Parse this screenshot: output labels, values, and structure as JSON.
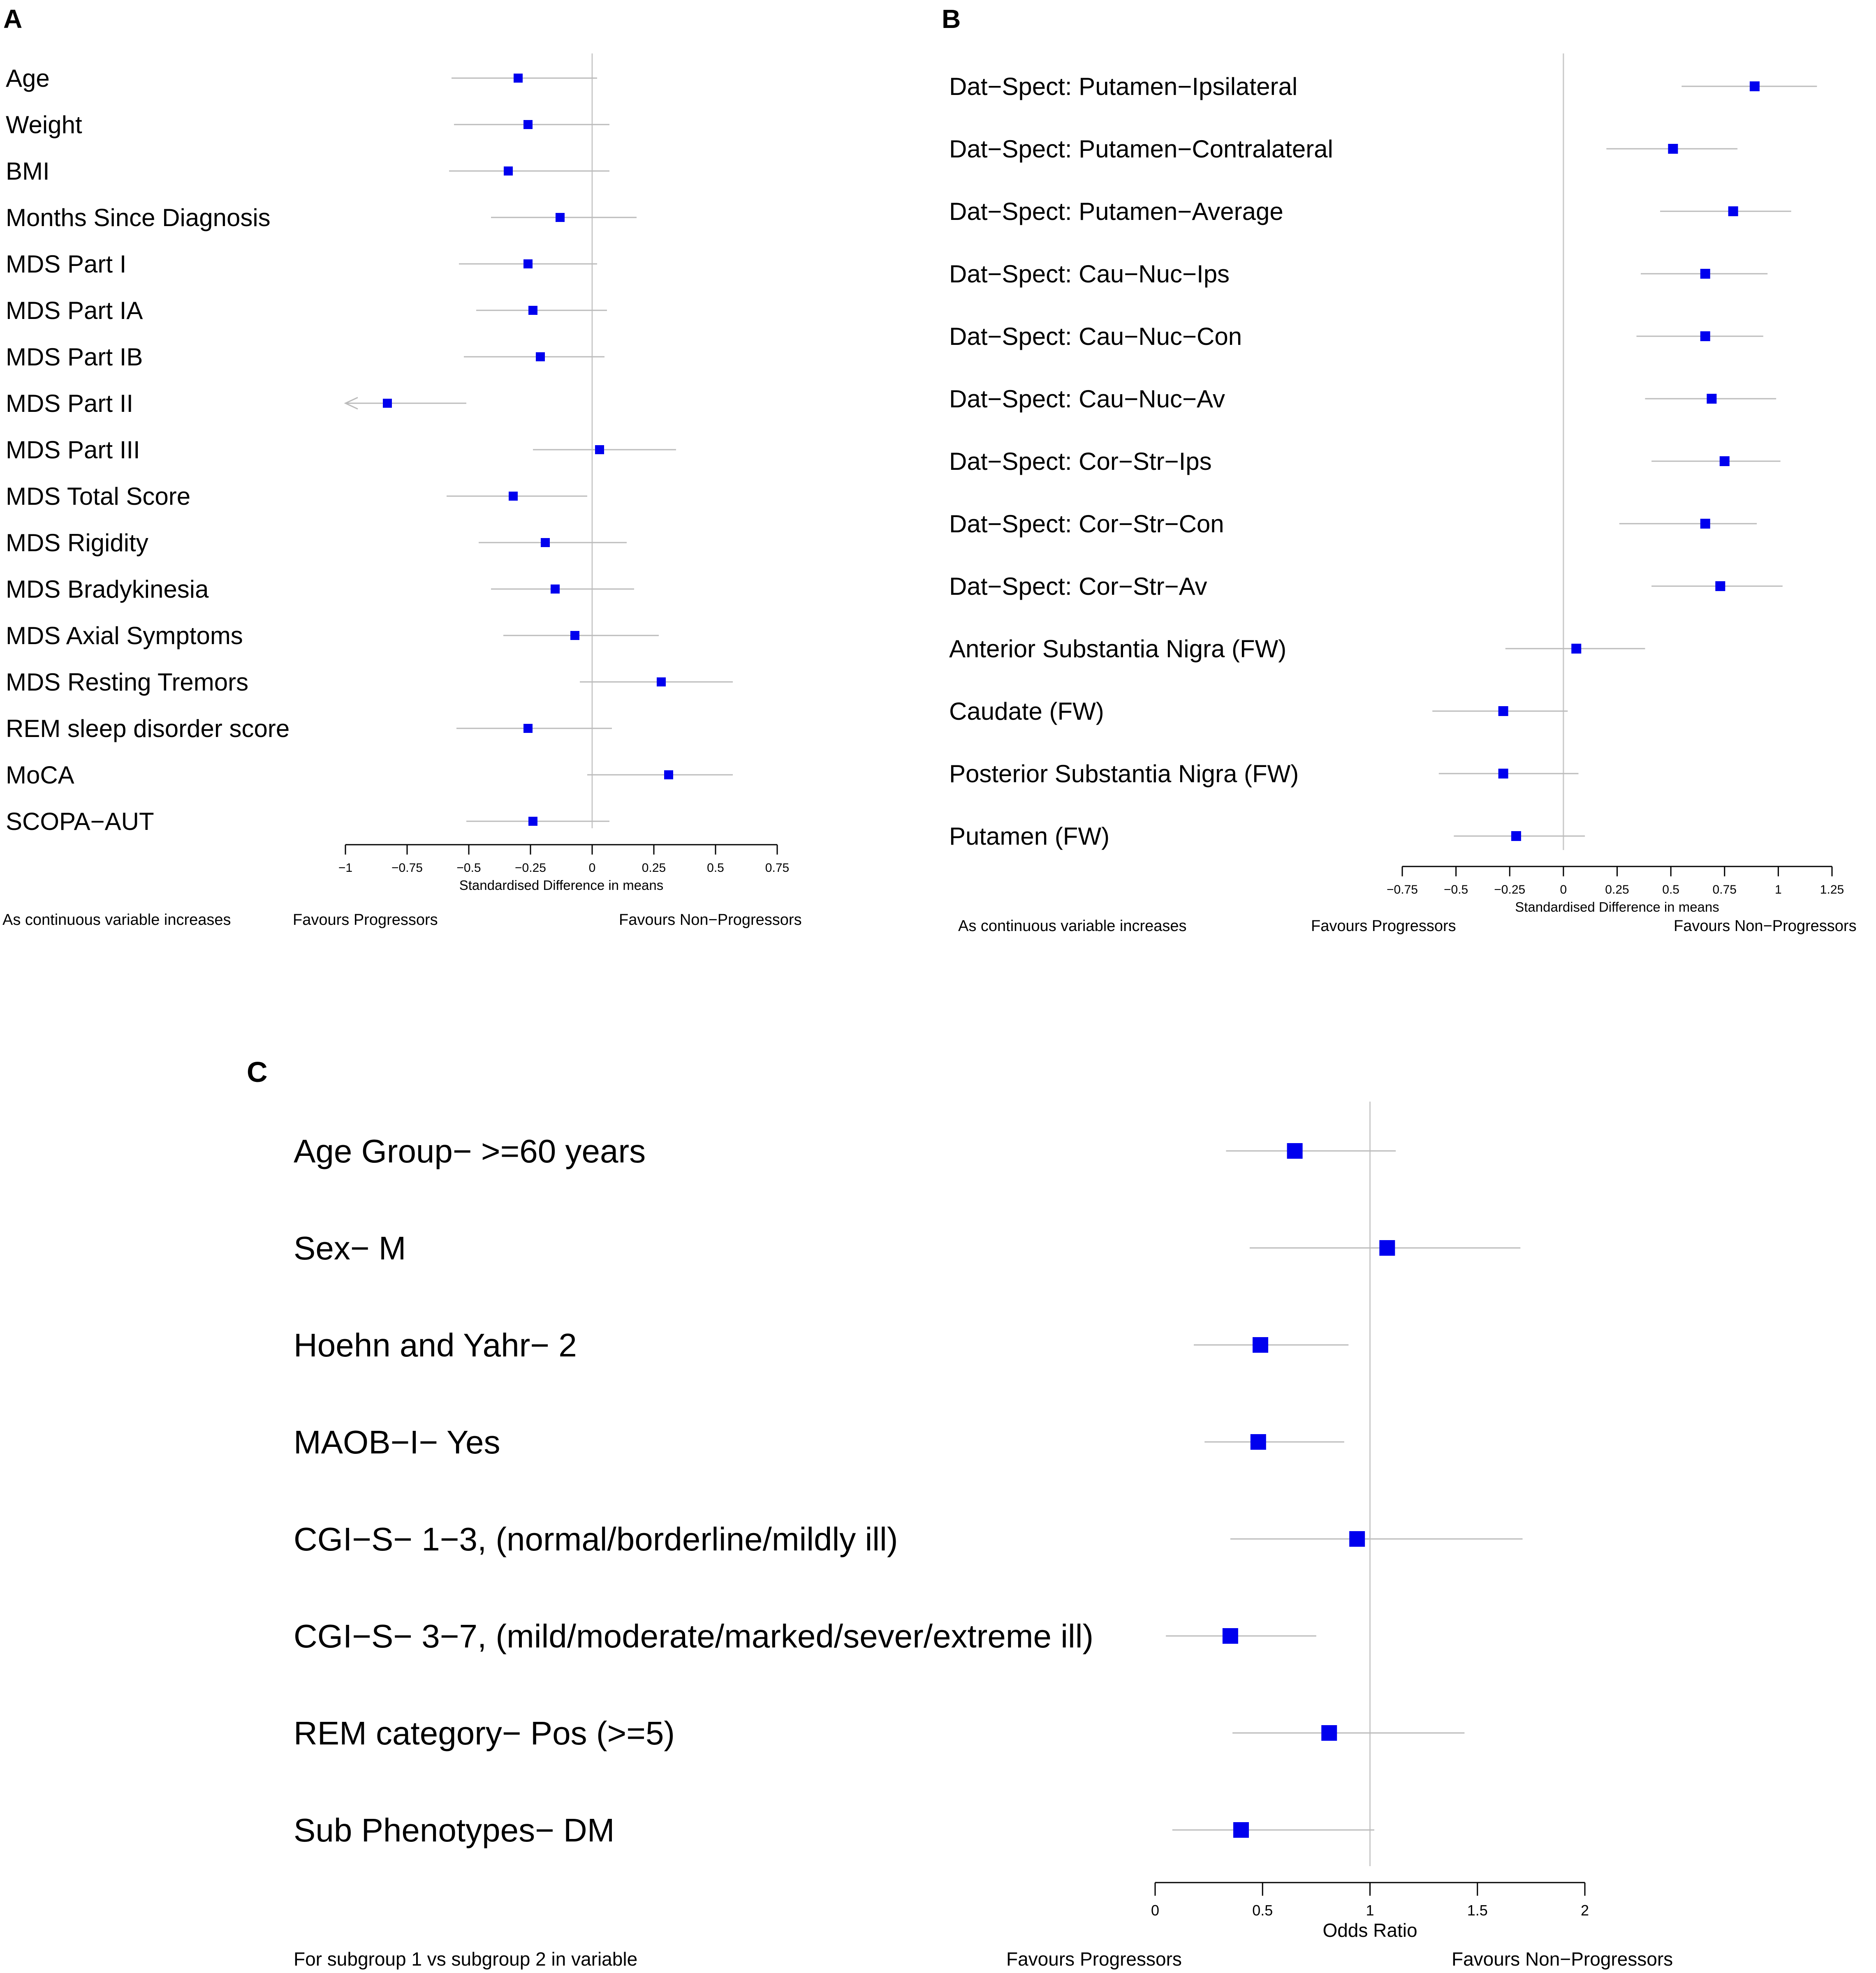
{
  "chart_data": [
    {
      "type": "forest",
      "panel_label": "A",
      "xlabel": "Standardised Difference in means",
      "ticks": [
        -1,
        -0.75,
        -0.5,
        -0.25,
        0,
        0.25,
        0.5,
        0.75
      ],
      "tick_labels": [
        "−1",
        "−0.75",
        "−0.5",
        "−0.25",
        "0",
        "0.25",
        "0.5",
        "0.75"
      ],
      "xlim": [
        -1,
        0.75
      ],
      "reference": 0,
      "footer_left": "As continuous variable increases",
      "footer_mid": "Favours Progressors",
      "footer_right": "Favours Non−Progressors",
      "rows": [
        {
          "label": "Age",
          "est": -0.3,
          "lo": -0.57,
          "hi": 0.02
        },
        {
          "label": "Weight",
          "est": -0.26,
          "lo": -0.56,
          "hi": 0.07
        },
        {
          "label": "BMI",
          "est": -0.34,
          "lo": -0.58,
          "hi": 0.07
        },
        {
          "label": "Months Since Diagnosis",
          "est": -0.13,
          "lo": -0.41,
          "hi": 0.18
        },
        {
          "label": "MDS Part I",
          "est": -0.26,
          "lo": -0.54,
          "hi": 0.02
        },
        {
          "label": "MDS Part IA",
          "est": -0.24,
          "lo": -0.47,
          "hi": 0.06
        },
        {
          "label": "MDS Part IB",
          "est": -0.21,
          "lo": -0.52,
          "hi": 0.05
        },
        {
          "label": "MDS Part II",
          "est": -0.83,
          "lo": -1.0,
          "hi": -0.51,
          "arrow_left": true
        },
        {
          "label": "MDS Part III",
          "est": 0.03,
          "lo": -0.24,
          "hi": 0.34
        },
        {
          "label": "MDS Total Score",
          "est": -0.32,
          "lo": -0.59,
          "hi": -0.02
        },
        {
          "label": "MDS Rigidity",
          "est": -0.19,
          "lo": -0.46,
          "hi": 0.14
        },
        {
          "label": "MDS Bradykinesia",
          "est": -0.15,
          "lo": -0.41,
          "hi": 0.17
        },
        {
          "label": "MDS Axial Symptoms",
          "est": -0.07,
          "lo": -0.36,
          "hi": 0.27
        },
        {
          "label": "MDS Resting Tremors",
          "est": 0.28,
          "lo": -0.05,
          "hi": 0.57
        },
        {
          "label": "REM sleep disorder score",
          "est": -0.26,
          "lo": -0.55,
          "hi": 0.08
        },
        {
          "label": "MoCA",
          "est": 0.31,
          "lo": -0.02,
          "hi": 0.57
        },
        {
          "label": "SCOPA−AUT",
          "est": -0.24,
          "lo": -0.51,
          "hi": 0.07
        }
      ]
    },
    {
      "type": "forest",
      "panel_label": "B",
      "xlabel": "Standardised Difference in means",
      "ticks": [
        -0.75,
        -0.5,
        -0.25,
        0,
        0.25,
        0.5,
        0.75,
        1,
        1.25
      ],
      "tick_labels": [
        "−0.75",
        "−0.5",
        "−0.25",
        "0",
        "0.25",
        "0.5",
        "0.75",
        "1",
        "1.25"
      ],
      "xlim": [
        -0.75,
        1.25
      ],
      "reference": 0,
      "footer_left": "As continuous variable increases",
      "footer_mid": "Favours Progressors",
      "footer_right": "Favours Non−Progressors",
      "rows": [
        {
          "label": "Dat−Spect: Putamen−Ipsilateral",
          "est": 0.89,
          "lo": 0.55,
          "hi": 1.18
        },
        {
          "label": "Dat−Spect: Putamen−Contralateral",
          "est": 0.51,
          "lo": 0.2,
          "hi": 0.81
        },
        {
          "label": "Dat−Spect: Putamen−Average",
          "est": 0.79,
          "lo": 0.45,
          "hi": 1.06
        },
        {
          "label": "Dat−Spect: Cau−Nuc−Ips",
          "est": 0.66,
          "lo": 0.36,
          "hi": 0.95
        },
        {
          "label": "Dat−Spect: Cau−Nuc−Con",
          "est": 0.66,
          "lo": 0.34,
          "hi": 0.93
        },
        {
          "label": "Dat−Spect: Cau−Nuc−Av",
          "est": 0.69,
          "lo": 0.38,
          "hi": 0.99
        },
        {
          "label": "Dat−Spect: Cor−Str−Ips",
          "est": 0.75,
          "lo": 0.41,
          "hi": 1.01
        },
        {
          "label": "Dat−Spect: Cor−Str−Con",
          "est": 0.66,
          "lo": 0.26,
          "hi": 0.9
        },
        {
          "label": "Dat−Spect: Cor−Str−Av",
          "est": 0.73,
          "lo": 0.41,
          "hi": 1.02
        },
        {
          "label": "Anterior Substantia Nigra (FW)",
          "est": 0.06,
          "lo": -0.27,
          "hi": 0.38
        },
        {
          "label": "Caudate (FW)",
          "est": -0.28,
          "lo": -0.61,
          "hi": 0.02
        },
        {
          "label": "Posterior Substantia Nigra (FW)",
          "est": -0.28,
          "lo": -0.58,
          "hi": 0.07
        },
        {
          "label": "Putamen (FW)",
          "est": -0.22,
          "lo": -0.51,
          "hi": 0.1
        }
      ]
    },
    {
      "type": "forest",
      "panel_label": "C",
      "xlabel": "Odds Ratio",
      "ticks": [
        0,
        0.5,
        1,
        1.5,
        2
      ],
      "tick_labels": [
        "0",
        "0.5",
        "1",
        "1.5",
        "2"
      ],
      "xlim": [
        0,
        2
      ],
      "reference": 1,
      "footer_left": "For subgroup 1 vs subgroup 2 in variable",
      "footer_mid": "Favours Progressors",
      "footer_right": "Favours Non−Progressors",
      "rows": [
        {
          "label": "Age Group− >=60 years",
          "est": 0.65,
          "lo": 0.33,
          "hi": 1.12
        },
        {
          "label": "Sex− M",
          "est": 1.08,
          "lo": 0.44,
          "hi": 1.7
        },
        {
          "label": "Hoehn and Yahr− 2",
          "est": 0.49,
          "lo": 0.18,
          "hi": 0.9
        },
        {
          "label": "MAOB−I− Yes",
          "est": 0.48,
          "lo": 0.23,
          "hi": 0.88
        },
        {
          "label": "CGI−S− 1−3, (normal/borderline/mildly ill)",
          "est": 0.94,
          "lo": 0.35,
          "hi": 1.71
        },
        {
          "label": "CGI−S− 3−7, (mild/moderate/marked/sever/extreme ill)",
          "est": 0.35,
          "lo": 0.05,
          "hi": 0.75
        },
        {
          "label": "REM category− Pos (>=5)",
          "est": 0.81,
          "lo": 0.36,
          "hi": 1.44
        },
        {
          "label": "Sub Phenotypes− DM",
          "est": 0.4,
          "lo": 0.08,
          "hi": 1.02
        }
      ]
    }
  ],
  "colors": {
    "marker": "#0000ee",
    "ci_line": "#bbbbbb",
    "reference_line": "#c8c8c8",
    "axis": "#000000",
    "text": "#000000"
  }
}
